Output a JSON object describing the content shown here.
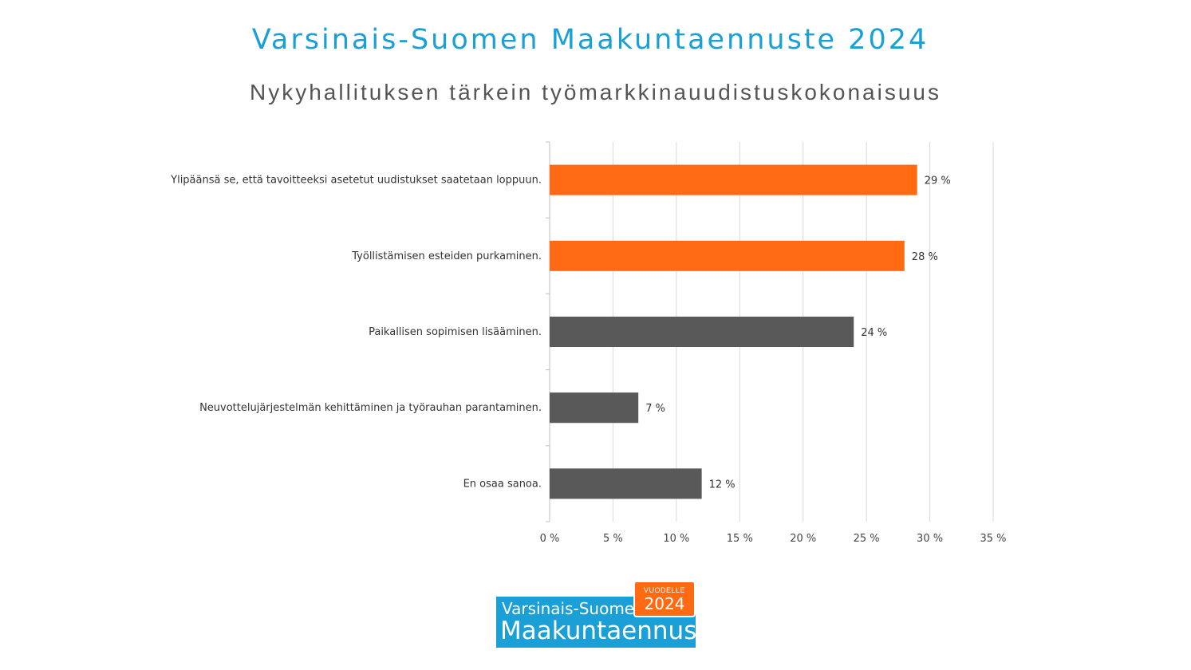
{
  "header": {
    "title": "Varsinais-Suomen Maakuntaennuste 2024",
    "subtitle": "Nykyhallituksen tärkein työmarkkinauudistuskokonaisuus"
  },
  "chart_data": {
    "type": "bar",
    "orientation": "horizontal",
    "categories": [
      "Ylipäänsä se, että tavoitteeksi asetetut uudistukset saatetaan loppuun.",
      "Työllistämisen esteiden purkaminen.",
      "Paikallisen sopimisen lisääminen.",
      "Neuvottelujärjestelmän kehittäminen ja työrauhan parantaminen.",
      "En osaa sanoa."
    ],
    "values": [
      29,
      28,
      24,
      7,
      12
    ],
    "value_labels": [
      "29 %",
      "28 %",
      "24 %",
      "7 %",
      "12 %"
    ],
    "bar_colors": [
      "#ff6a13",
      "#ff6a13",
      "#595959",
      "#595959",
      "#595959"
    ],
    "xlim": [
      0,
      35
    ],
    "xticks": [
      "0 %",
      "5 %",
      "10 %",
      "15 %",
      "20 %",
      "25 %",
      "30 %",
      "35 %"
    ],
    "grid": true,
    "legend": "none"
  },
  "logo": {
    "line1": "Varsinais-Suomen",
    "line2": "Maakuntaennuste",
    "badge_small": "VUODELLE",
    "badge_year": "2024"
  },
  "colors": {
    "title": "#1aa0d6",
    "highlight_bar": "#ff6a13",
    "default_bar": "#595959",
    "gridline": "#d9d9d9"
  }
}
